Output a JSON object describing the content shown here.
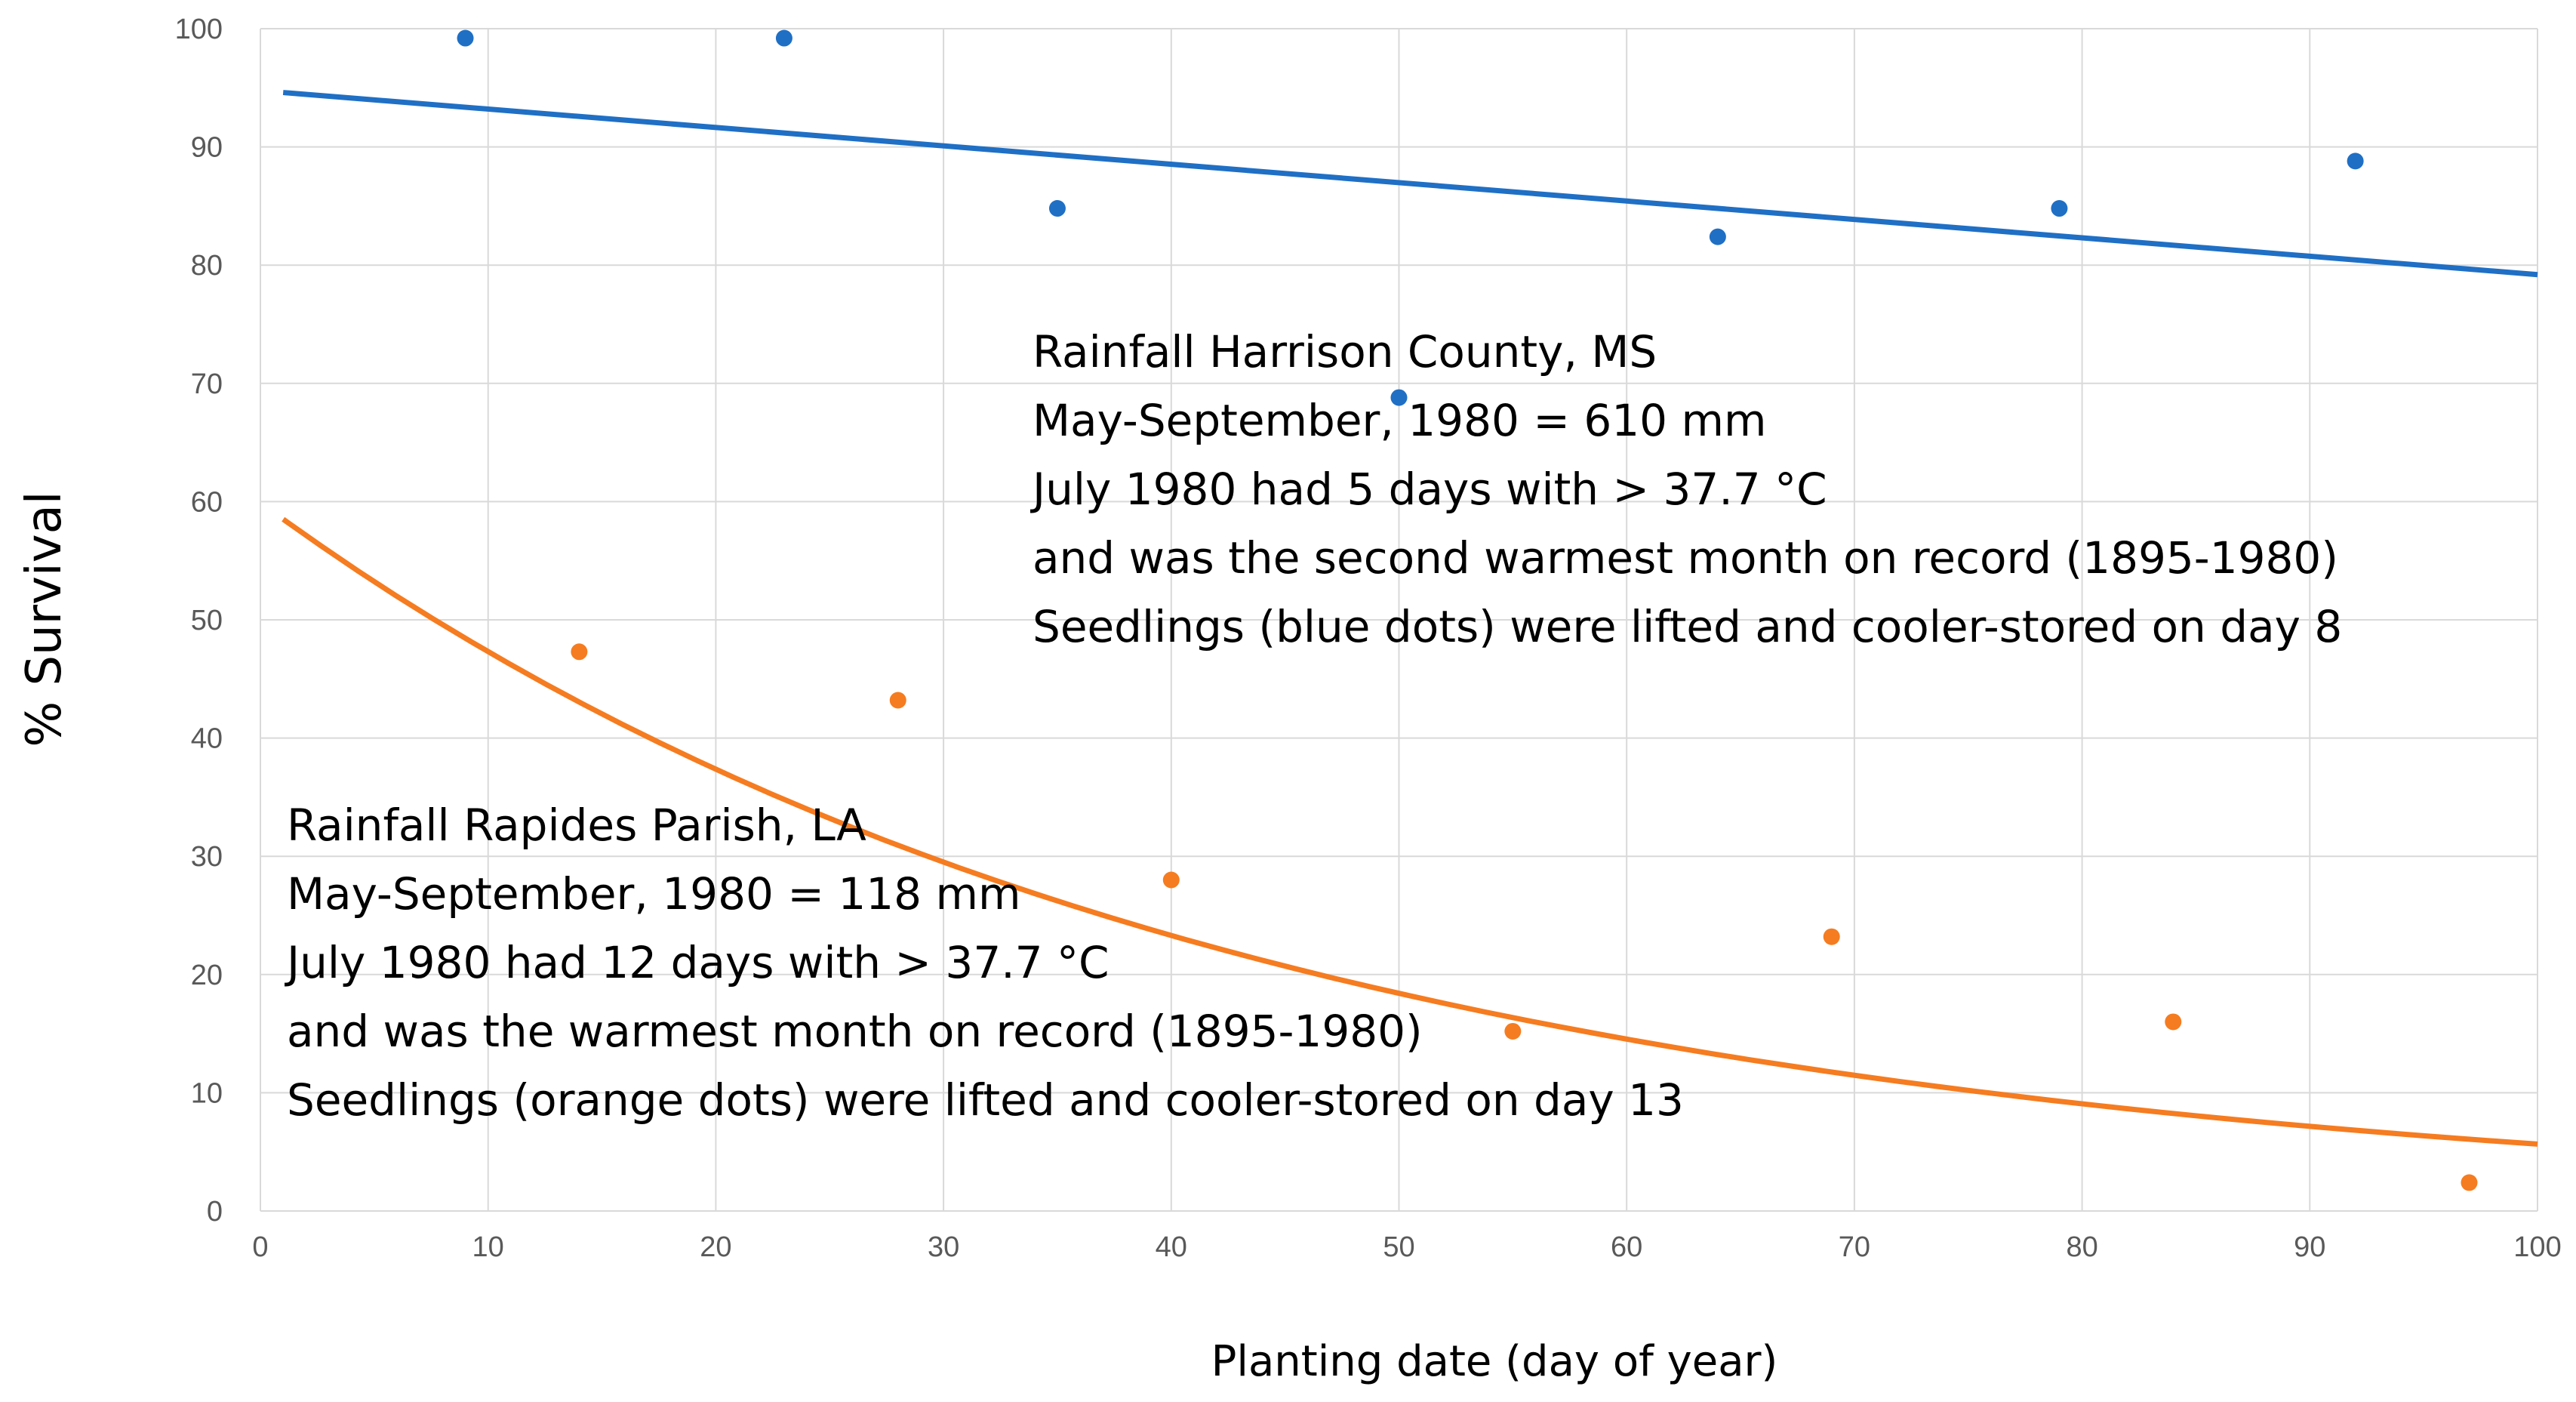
{
  "chart_data": {
    "type": "scatter",
    "title": "",
    "xlabel": "Planting date (day of year)",
    "ylabel": "% Survival",
    "xlim": [
      0,
      100
    ],
    "ylim": [
      0,
      100
    ],
    "x_ticks": [
      0,
      10,
      20,
      30,
      40,
      50,
      60,
      70,
      80,
      90,
      100
    ],
    "y_ticks": [
      0,
      10,
      20,
      30,
      40,
      50,
      60,
      70,
      80,
      90,
      100
    ],
    "grid": true,
    "legend": "none",
    "series": [
      {
        "color": "#1f6fc5",
        "points": [
          {
            "x": 9,
            "y": 99.2
          },
          {
            "x": 23,
            "y": 99.2
          },
          {
            "x": 35,
            "y": 84.8
          },
          {
            "x": 50,
            "y": 68.8
          },
          {
            "x": 64,
            "y": 82.4
          },
          {
            "x": 79,
            "y": 84.8
          },
          {
            "x": 92,
            "y": 88.8
          }
        ],
        "trendline": {
          "type": "linear",
          "x0": 1,
          "y0": 94.6,
          "x1": 100,
          "y1": 79.2
        }
      },
      {
        "color": "#f57c20",
        "points": [
          {
            "x": 14,
            "y": 47.3
          },
          {
            "x": 28,
            "y": 43.2
          },
          {
            "x": 40,
            "y": 28.0
          },
          {
            "x": 55,
            "y": 15.2
          },
          {
            "x": 69,
            "y": 23.2
          },
          {
            "x": 84,
            "y": 16.0
          },
          {
            "x": 97,
            "y": 2.4
          }
        ],
        "trendline": {
          "type": "exponential",
          "a": 59.9,
          "b": -0.0236,
          "x0": 1,
          "x1": 100
        }
      }
    ],
    "annotations": [
      {
        "lines": [
          "Rainfall Harrison County, MS",
          "May-September, 1980 = 610 mm",
          "July 1980 had 5 days with > 37.7 °C",
          "and was the second warmest month on record (1895-1980)",
          "Seedlings (blue dots) were lifted and cooler-stored on day 8"
        ]
      },
      {
        "lines": [
          "Rainfall Rapides Parish, LA",
          "May-September, 1980 = 118 mm",
          "July 1980 had 12 days with > 37.7 °C",
          "and was the warmest month on record (1895-1980)",
          "Seedlings (orange dots) were lifted and cooler-stored on day 13"
        ]
      }
    ]
  }
}
